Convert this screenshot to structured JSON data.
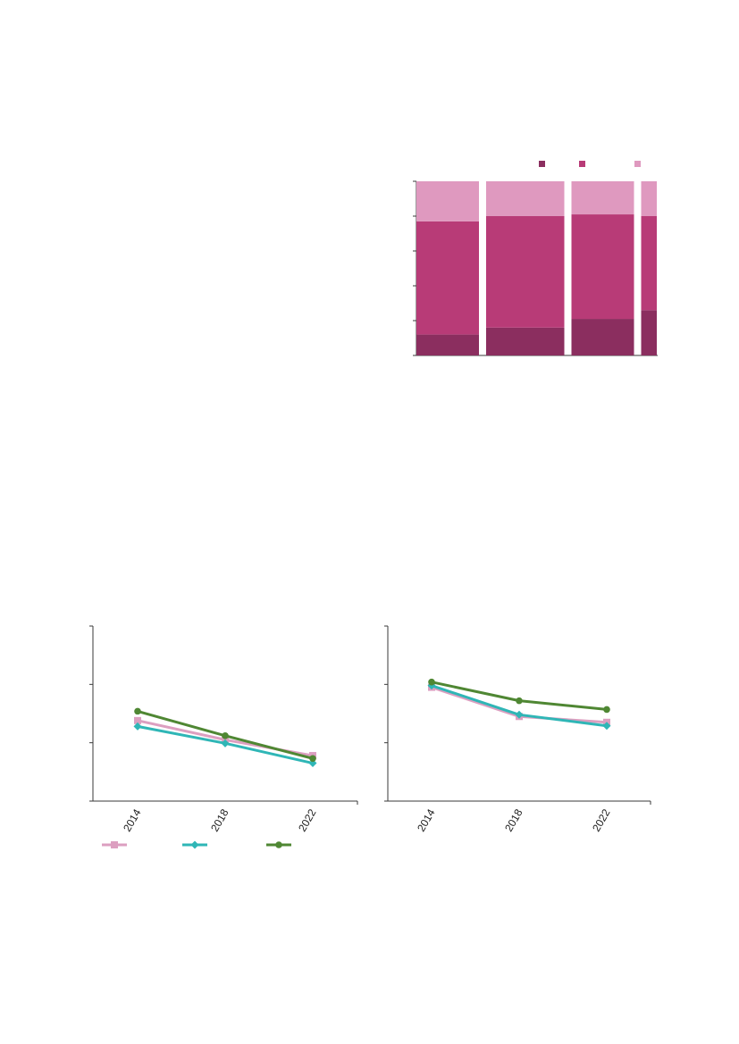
{
  "colors": {
    "dark": "#8b2e5f",
    "mid": "#b83b77",
    "light": "#df99bf",
    "pink_line": "#dc9fc0",
    "teal_line": "#2fb6b6",
    "green_line": "#4f8733",
    "axis": "#3a3a3a"
  },
  "chart_data": [
    {
      "type": "bar",
      "stacked": true,
      "percent": true,
      "categories": [
        "",
        "",
        "",
        ""
      ],
      "bar_widths": [
        1.0,
        1.25,
        1.0,
        0.25
      ],
      "series": [
        {
          "values": [
            12,
            16,
            21,
            26
          ],
          "color": "#8b2e5f",
          "marker": "square"
        },
        {
          "values": [
            65,
            64,
            60,
            54
          ],
          "color": "#b83b77",
          "marker": "square"
        },
        {
          "values": [
            23,
            20,
            19,
            20
          ],
          "color": "#df99bf",
          "marker": "square"
        }
      ],
      "ylim": [
        0,
        100
      ],
      "yticks": [
        0,
        20,
        40,
        60,
        80,
        100
      ],
      "grid": false,
      "legend_position": "top-right",
      "title": "",
      "xlabel": "",
      "ylabel": ""
    },
    {
      "type": "line",
      "x": [
        "2014",
        "2018",
        "2022"
      ],
      "series": [
        {
          "values": [
            1.38,
            1.05,
            0.78
          ],
          "color": "#dc9fc0",
          "marker": "square"
        },
        {
          "values": [
            1.28,
            0.99,
            0.65
          ],
          "color": "#2fb6b6",
          "marker": "diamond"
        },
        {
          "values": [
            1.54,
            1.12,
            0.73
          ],
          "color": "#4f8733",
          "marker": "circle"
        }
      ],
      "ylim": [
        0,
        3
      ],
      "yticks": [
        0,
        1,
        2,
        3
      ],
      "legend_position": "bottom",
      "grid": false,
      "title": "",
      "xlabel": "",
      "ylabel": ""
    },
    {
      "type": "line",
      "x": [
        "2014",
        "2018",
        "2022"
      ],
      "series": [
        {
          "values": [
            1.95,
            1.45,
            1.35
          ],
          "color": "#dc9fc0",
          "marker": "square"
        },
        {
          "values": [
            1.98,
            1.48,
            1.29
          ],
          "color": "#2fb6b6",
          "marker": "diamond"
        },
        {
          "values": [
            2.04,
            1.72,
            1.57
          ],
          "color": "#4f8733",
          "marker": "circle"
        }
      ],
      "ylim": [
        0,
        3
      ],
      "yticks": [
        0,
        1,
        2,
        3
      ],
      "grid": false,
      "title": "",
      "xlabel": "",
      "ylabel": ""
    }
  ]
}
